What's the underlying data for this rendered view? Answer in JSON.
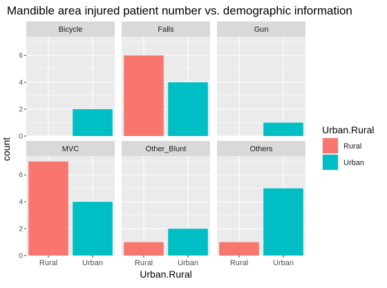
{
  "chart_data": {
    "type": "bar",
    "title": "Mandible area injured patient number vs. demographic information",
    "xlabel": "Urban.Rural",
    "ylabel": "count",
    "ylim": [
      0,
      7.4
    ],
    "yticks": [
      0,
      2,
      4,
      6
    ],
    "categories": [
      "Rural",
      "Urban"
    ],
    "grid": true,
    "legend": {
      "title": "Urban.Rural",
      "placement": "right",
      "items": [
        {
          "label": "Rural",
          "color": "#F8766D"
        },
        {
          "label": "Urban",
          "color": "#00BFC4"
        }
      ]
    },
    "facets": [
      {
        "name": "Bicycle",
        "values": [
          0,
          2
        ]
      },
      {
        "name": "Falls",
        "values": [
          6,
          4
        ]
      },
      {
        "name": "Gun",
        "values": [
          0,
          1
        ]
      },
      {
        "name": "MVC",
        "values": [
          7,
          4
        ]
      },
      {
        "name": "Other_Blunt",
        "values": [
          1,
          2
        ]
      },
      {
        "name": "Others",
        "values": [
          1,
          5
        ]
      }
    ]
  },
  "colors": {
    "panel_bg": "#EBEBEB",
    "strip_bg": "#D9D9D9",
    "grid": "#FFFFFF",
    "tick_text": "#4D4D4D",
    "strip_text": "#1A1A1A"
  }
}
